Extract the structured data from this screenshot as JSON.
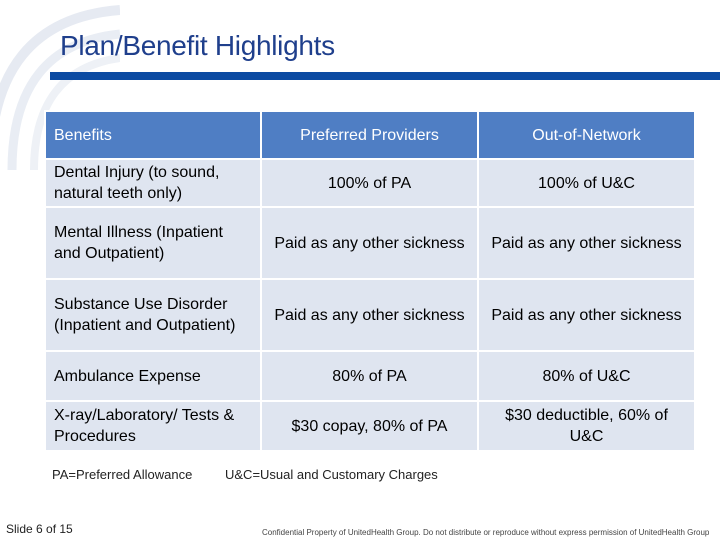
{
  "slide": {
    "title": "Plan/Benefit Highlights",
    "accent_color": "#0b4aa2",
    "header_color": "#4f7ec4",
    "row_color": "#dfe5f0"
  },
  "table": {
    "headers": [
      "Benefits",
      "Preferred Providers",
      "Out-of-Network"
    ],
    "rows": [
      [
        "Dental Injury (to sound, natural teeth only)",
        "100% of PA",
        "100% of U&C"
      ],
      [
        "Mental Illness (Inpatient and Outpatient)",
        "Paid as any other sickness",
        "Paid as any other sickness"
      ],
      [
        "Substance Use Disorder (Inpatient and Outpatient)",
        "Paid as any other sickness",
        "Paid as any other sickness"
      ],
      [
        "Ambulance Expense",
        "80% of PA",
        "80% of U&C"
      ],
      [
        "X-ray/Laboratory/ Tests & Procedures",
        "$30 copay, 80% of PA",
        "$30 deductible, 60% of U&C"
      ]
    ]
  },
  "notes": {
    "pa": "PA=Preferred Allowance",
    "uc": "U&C=Usual and Customary Charges"
  },
  "footer": {
    "slide_number": "Slide 6 of 15",
    "confidential": "Confidential Property of UnitedHealth Group. Do not distribute or reproduce without express permission of UnitedHealth Group"
  }
}
